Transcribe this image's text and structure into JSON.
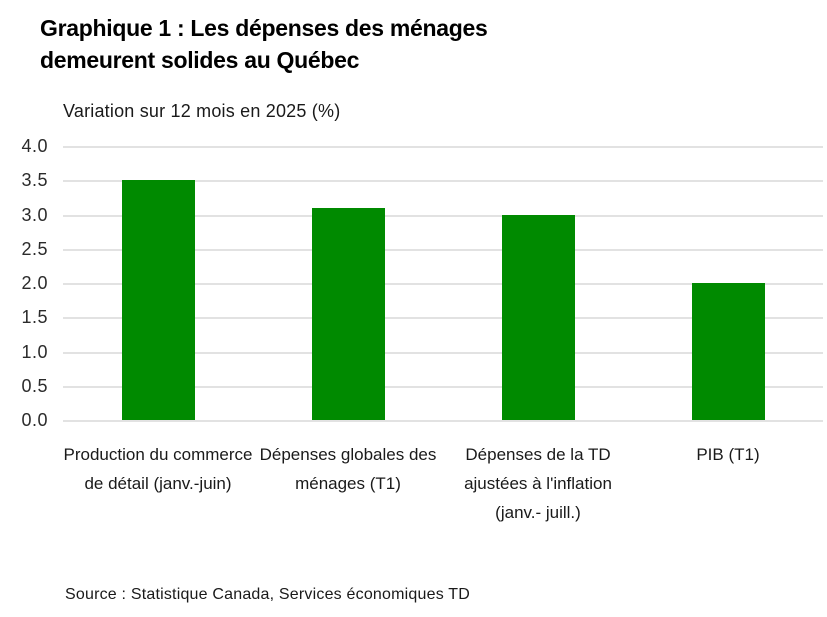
{
  "header": {
    "title": "Graphique 1 :  Les dépenses des ménages demeurent solides au Québec"
  },
  "chart_data": {
    "type": "bar",
    "title": "Graphique 1 :  Les dépenses des ménages demeurent solides au Québec",
    "subtitle": "Variation sur 12 mois en 2025 (%)",
    "categories": [
      "Production du commerce de détail (janv.-juin)",
      "Dépenses globales des ménages (T1)",
      "Dépenses de la TD ajustées à l'inflation (janv.- juill.)",
      "PIB (T1)"
    ],
    "values": [
      3.5,
      3.1,
      3.0,
      2.0
    ],
    "xlabel": "",
    "ylabel": "",
    "ylim": [
      0,
      4
    ],
    "ytick_step": 0.5,
    "yticks": [
      "4.0",
      "3.5",
      "3.0",
      "2.5",
      "2.0",
      "1.5",
      "1.0",
      "0.5",
      "0.0"
    ],
    "grid": true,
    "legend_position": "none",
    "bar_color": "#008a00",
    "gridline_color": "#e2e2e2"
  },
  "footer": {
    "source": "Source : Statistique Canada, Services économiques TD"
  }
}
